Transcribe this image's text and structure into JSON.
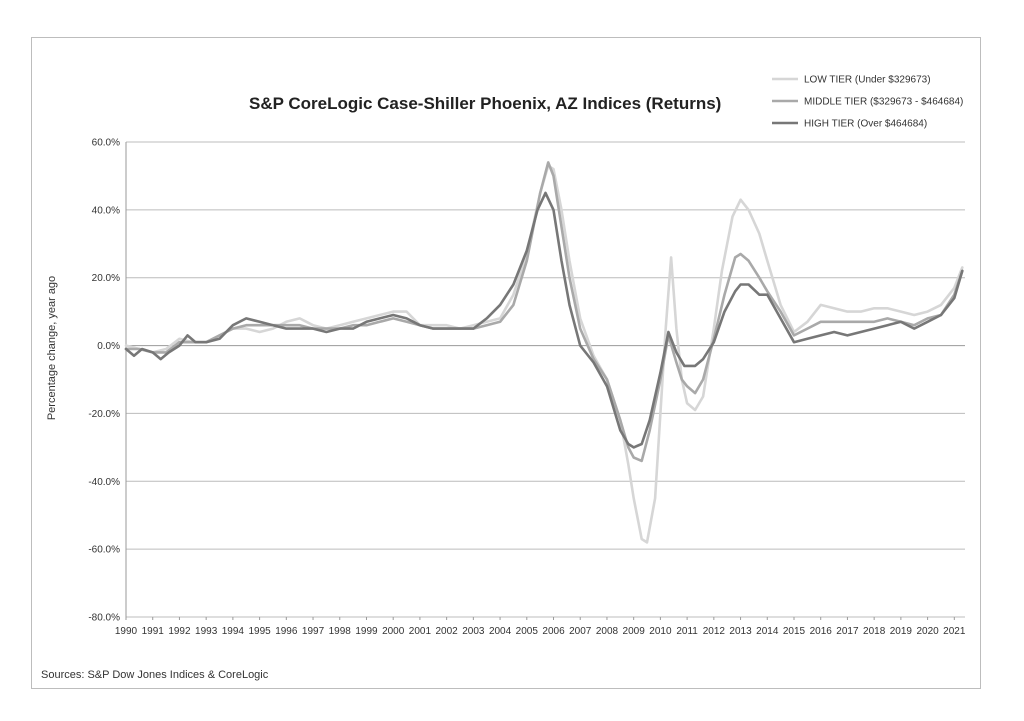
{
  "chart_data": {
    "type": "line",
    "title": "S&P CoreLogic Case-Shiller Phoenix, AZ Indices (Returns)",
    "xlabel": "",
    "ylabel": "Percentage change, year ago",
    "source": "Sources: S&P Dow Jones Indices & CoreLogic",
    "xlim": [
      1990,
      2021.4
    ],
    "ylim": [
      -80,
      60
    ],
    "y_ticks": [
      60,
      40,
      20,
      0,
      -20,
      -40,
      -60,
      -80
    ],
    "y_tick_labels": [
      "60.0%",
      "40.0%",
      "20.0%",
      "0.0%",
      "-20.0%",
      "-40.0%",
      "-60.0%",
      "-80.0%"
    ],
    "x_ticks": [
      "1990",
      "1991",
      "1992",
      "1993",
      "1994",
      "1995",
      "1996",
      "1997",
      "1998",
      "1999",
      "2000",
      "2001",
      "2002",
      "2003",
      "2004",
      "2005",
      "2006",
      "2007",
      "2008",
      "2009",
      "2010",
      "2011",
      "2012",
      "2013",
      "2014",
      "2015",
      "2016",
      "2017",
      "2018",
      "2019",
      "2020",
      "2021"
    ],
    "grid": "horizontal",
    "legend_position": "top-right",
    "series": [
      {
        "name": "LOW TIER (Under $329673)",
        "color": "#d6d6d6",
        "points": [
          [
            1990,
            0
          ],
          [
            1990.5,
            -1
          ],
          [
            1991,
            -2
          ],
          [
            1991.5,
            -1
          ],
          [
            1992,
            2
          ],
          [
            1992.5,
            1
          ],
          [
            1993,
            1
          ],
          [
            1993.5,
            3
          ],
          [
            1994,
            5
          ],
          [
            1994.5,
            5
          ],
          [
            1995,
            4
          ],
          [
            1995.5,
            5
          ],
          [
            1996,
            7
          ],
          [
            1996.5,
            8
          ],
          [
            1997,
            6
          ],
          [
            1997.5,
            5
          ],
          [
            1998,
            6
          ],
          [
            1998.5,
            7
          ],
          [
            1999,
            8
          ],
          [
            1999.5,
            9
          ],
          [
            2000,
            10
          ],
          [
            2000.5,
            10
          ],
          [
            2001,
            6
          ],
          [
            2001.5,
            6
          ],
          [
            2002,
            6
          ],
          [
            2002.5,
            5
          ],
          [
            2003,
            6
          ],
          [
            2003.5,
            7
          ],
          [
            2004,
            8
          ],
          [
            2004.5,
            15
          ],
          [
            2005,
            27
          ],
          [
            2005.5,
            45
          ],
          [
            2005.8,
            53
          ],
          [
            2006,
            52
          ],
          [
            2006.3,
            40
          ],
          [
            2006.6,
            25
          ],
          [
            2007,
            8
          ],
          [
            2007.5,
            -3
          ],
          [
            2008,
            -10
          ],
          [
            2008.5,
            -22
          ],
          [
            2008.8,
            -35
          ],
          [
            2009,
            -45
          ],
          [
            2009.3,
            -57
          ],
          [
            2009.5,
            -58
          ],
          [
            2009.8,
            -45
          ],
          [
            2010,
            -20
          ],
          [
            2010.2,
            5
          ],
          [
            2010.4,
            26
          ],
          [
            2010.6,
            5
          ],
          [
            2010.8,
            -10
          ],
          [
            2011,
            -17
          ],
          [
            2011.3,
            -19
          ],
          [
            2011.6,
            -15
          ],
          [
            2012,
            5
          ],
          [
            2012.3,
            22
          ],
          [
            2012.7,
            38
          ],
          [
            2013,
            43
          ],
          [
            2013.3,
            40
          ],
          [
            2013.7,
            33
          ],
          [
            2014,
            25
          ],
          [
            2014.5,
            12
          ],
          [
            2015,
            4
          ],
          [
            2015.5,
            7
          ],
          [
            2016,
            12
          ],
          [
            2016.5,
            11
          ],
          [
            2017,
            10
          ],
          [
            2017.5,
            10
          ],
          [
            2018,
            11
          ],
          [
            2018.5,
            11
          ],
          [
            2019,
            10
          ],
          [
            2019.5,
            9
          ],
          [
            2020,
            10
          ],
          [
            2020.5,
            12
          ],
          [
            2021,
            17
          ],
          [
            2021.3,
            23
          ]
        ]
      },
      {
        "name": "MIDDLE TIER ($329673 - $464684)",
        "color": "#a9a9a9",
        "points": [
          [
            1990,
            -1
          ],
          [
            1990.5,
            -1
          ],
          [
            1991,
            -2
          ],
          [
            1991.5,
            -2
          ],
          [
            1992,
            1
          ],
          [
            1992.5,
            1
          ],
          [
            1993,
            1
          ],
          [
            1993.5,
            3
          ],
          [
            1994,
            5
          ],
          [
            1994.5,
            6
          ],
          [
            1995,
            6
          ],
          [
            1995.5,
            6
          ],
          [
            1996,
            6
          ],
          [
            1996.5,
            6
          ],
          [
            1997,
            5
          ],
          [
            1997.5,
            5
          ],
          [
            1998,
            5
          ],
          [
            1998.5,
            6
          ],
          [
            1999,
            6
          ],
          [
            1999.5,
            7
          ],
          [
            2000,
            8
          ],
          [
            2000.5,
            7
          ],
          [
            2001,
            6
          ],
          [
            2001.5,
            5
          ],
          [
            2002,
            5
          ],
          [
            2002.5,
            5
          ],
          [
            2003,
            5
          ],
          [
            2003.5,
            6
          ],
          [
            2004,
            7
          ],
          [
            2004.5,
            12
          ],
          [
            2005,
            25
          ],
          [
            2005.5,
            45
          ],
          [
            2005.8,
            54
          ],
          [
            2006,
            50
          ],
          [
            2006.3,
            35
          ],
          [
            2006.6,
            20
          ],
          [
            2007,
            5
          ],
          [
            2007.5,
            -4
          ],
          [
            2008,
            -10
          ],
          [
            2008.5,
            -22
          ],
          [
            2008.8,
            -30
          ],
          [
            2009,
            -33
          ],
          [
            2009.3,
            -34
          ],
          [
            2009.6,
            -25
          ],
          [
            2010,
            -10
          ],
          [
            2010.3,
            3
          ],
          [
            2010.6,
            -5
          ],
          [
            2010.8,
            -10
          ],
          [
            2011,
            -12
          ],
          [
            2011.3,
            -14
          ],
          [
            2011.6,
            -10
          ],
          [
            2012,
            2
          ],
          [
            2012.4,
            15
          ],
          [
            2012.8,
            26
          ],
          [
            2013,
            27
          ],
          [
            2013.3,
            25
          ],
          [
            2013.7,
            20
          ],
          [
            2014,
            16
          ],
          [
            2014.5,
            10
          ],
          [
            2015,
            3
          ],
          [
            2015.5,
            5
          ],
          [
            2016,
            7
          ],
          [
            2016.5,
            7
          ],
          [
            2017,
            7
          ],
          [
            2017.5,
            7
          ],
          [
            2018,
            7
          ],
          [
            2018.5,
            8
          ],
          [
            2019,
            7
          ],
          [
            2019.5,
            6
          ],
          [
            2020,
            8
          ],
          [
            2020.5,
            9
          ],
          [
            2021,
            15
          ],
          [
            2021.3,
            22
          ]
        ]
      },
      {
        "name": "HIGH TIER (Over $464684)",
        "color": "#777777",
        "points": [
          [
            1990,
            -1
          ],
          [
            1990.3,
            -3
          ],
          [
            1990.6,
            -1
          ],
          [
            1991,
            -2
          ],
          [
            1991.3,
            -4
          ],
          [
            1991.6,
            -2
          ],
          [
            1992,
            0
          ],
          [
            1992.3,
            3
          ],
          [
            1992.6,
            1
          ],
          [
            1993,
            1
          ],
          [
            1993.5,
            2
          ],
          [
            1994,
            6
          ],
          [
            1994.5,
            8
          ],
          [
            1995,
            7
          ],
          [
            1995.5,
            6
          ],
          [
            1996,
            5
          ],
          [
            1996.5,
            5
          ],
          [
            1997,
            5
          ],
          [
            1997.5,
            4
          ],
          [
            1998,
            5
          ],
          [
            1998.5,
            5
          ],
          [
            1999,
            7
          ],
          [
            1999.5,
            8
          ],
          [
            2000,
            9
          ],
          [
            2000.5,
            8
          ],
          [
            2001,
            6
          ],
          [
            2001.5,
            5
          ],
          [
            2002,
            5
          ],
          [
            2002.5,
            5
          ],
          [
            2003,
            5
          ],
          [
            2003.5,
            8
          ],
          [
            2004,
            12
          ],
          [
            2004.5,
            18
          ],
          [
            2005,
            28
          ],
          [
            2005.4,
            40
          ],
          [
            2005.7,
            45
          ],
          [
            2006,
            40
          ],
          [
            2006.3,
            25
          ],
          [
            2006.6,
            12
          ],
          [
            2007,
            0
          ],
          [
            2007.5,
            -5
          ],
          [
            2008,
            -12
          ],
          [
            2008.5,
            -25
          ],
          [
            2008.8,
            -29
          ],
          [
            2009,
            -30
          ],
          [
            2009.3,
            -29
          ],
          [
            2009.6,
            -22
          ],
          [
            2010,
            -8
          ],
          [
            2010.3,
            4
          ],
          [
            2010.6,
            -2
          ],
          [
            2010.9,
            -6
          ],
          [
            2011.3,
            -6
          ],
          [
            2011.6,
            -4
          ],
          [
            2012,
            1
          ],
          [
            2012.4,
            10
          ],
          [
            2012.8,
            16
          ],
          [
            2013,
            18
          ],
          [
            2013.3,
            18
          ],
          [
            2013.7,
            15
          ],
          [
            2014,
            15
          ],
          [
            2014.5,
            8
          ],
          [
            2015,
            1
          ],
          [
            2015.5,
            2
          ],
          [
            2016,
            3
          ],
          [
            2016.5,
            4
          ],
          [
            2017,
            3
          ],
          [
            2017.5,
            4
          ],
          [
            2018,
            5
          ],
          [
            2018.5,
            6
          ],
          [
            2019,
            7
          ],
          [
            2019.5,
            5
          ],
          [
            2020,
            7
          ],
          [
            2020.5,
            9
          ],
          [
            2021,
            14
          ],
          [
            2021.3,
            22
          ]
        ]
      }
    ]
  }
}
